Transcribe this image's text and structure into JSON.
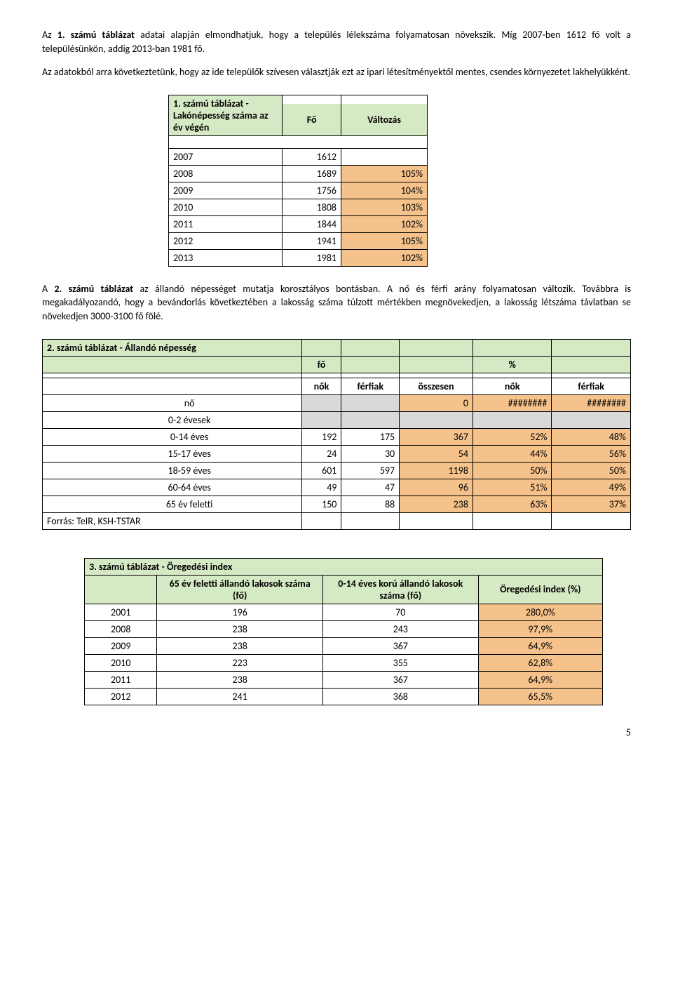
{
  "para1": {
    "prefix": "Az ",
    "bold": "1. számú táblázat",
    "rest": " adatai alapján elmondhatjuk, hogy a település lélekszáma folyamatosan növekszik. Míg 2007-ben 1612 fő volt a településünkön, addig 2013-ban 1981 fő."
  },
  "para2": "Az adatokból arra következtetünk, hogy az ide települők szívesen választják ezt az ipari létesítményektől mentes, csendes környezetet lakhelyükként.",
  "table1": {
    "title": "1. számú táblázat - Lakónépesség száma az év végén",
    "col_fo": "Fő",
    "col_valtozas": "Változás",
    "rows": [
      {
        "year": "2007",
        "fo": "1612",
        "chg": ""
      },
      {
        "year": "2008",
        "fo": "1689",
        "chg": "105%"
      },
      {
        "year": "2009",
        "fo": "1756",
        "chg": "104%"
      },
      {
        "year": "2010",
        "fo": "1808",
        "chg": "103%"
      },
      {
        "year": "2011",
        "fo": "1844",
        "chg": "102%"
      },
      {
        "year": "2012",
        "fo": "1941",
        "chg": "105%"
      },
      {
        "year": "2013",
        "fo": "1981",
        "chg": "102%"
      }
    ]
  },
  "para3": {
    "prefix": "A ",
    "bold": "2. számú táblázat",
    "rest": " az állandó népességet mutatja korosztályos bontásban. A nő és férfi arány folyamatosan változik. Továbbra is megakadályozandó, hogy a bevándorlás következtében a lakosság száma túlzott mértékben megnövekedjen, a lakosság létszáma távlatban se növekedjen 3000-3100 fő fölé."
  },
  "table2": {
    "title": "2. számú táblázat - Állandó népesség",
    "col_fo": "fő",
    "col_pct": "%",
    "sub_nok": "nők",
    "sub_ferfiak": "férfiak",
    "sub_osszesen": "összesen",
    "rows": [
      {
        "lbl": "nő",
        "grey": true,
        "n": "",
        "f": "",
        "o": "0",
        "pn": "########",
        "pf": "########"
      },
      {
        "lbl": "0-2 évesek",
        "grey": true,
        "n": "",
        "f": "",
        "o": "",
        "pn": "",
        "pf": ""
      },
      {
        "lbl": "0-14 éves",
        "n": "192",
        "f": "175",
        "o": "367",
        "pn": "52%",
        "pf": "48%"
      },
      {
        "lbl": "15-17 éves",
        "n": "24",
        "f": "30",
        "o": "54",
        "pn": "44%",
        "pf": "56%"
      },
      {
        "lbl": "18-59 éves",
        "n": "601",
        "f": "597",
        "o": "1198",
        "pn": "50%",
        "pf": "50%"
      },
      {
        "lbl": "60-64 éves",
        "n": "49",
        "f": "47",
        "o": "96",
        "pn": "51%",
        "pf": "49%"
      },
      {
        "lbl": "65 év feletti",
        "n": "150",
        "f": "88",
        "o": "238",
        "pn": "63%",
        "pf": "37%"
      }
    ],
    "source": "Forrás: TeIR, KSH-TSTAR"
  },
  "table3": {
    "title": "3. számú táblázat - Öregedési index",
    "h1": "65 év feletti állandó lakosok száma (fő)",
    "h2": "0-14 éves korú állandó lakosok száma (fő)",
    "h3": "Öregedési index (%)",
    "rows": [
      {
        "y": "2001",
        "a": "196",
        "b": "70",
        "c": "280,0%"
      },
      {
        "y": "2008",
        "a": "238",
        "b": "243",
        "c": "97,9%"
      },
      {
        "y": "2009",
        "a": "238",
        "b": "367",
        "c": "64,9%"
      },
      {
        "y": "2010",
        "a": "223",
        "b": "355",
        "c": "62,8%"
      },
      {
        "y": "2011",
        "a": "238",
        "b": "367",
        "c": "64,9%"
      },
      {
        "y": "2012",
        "a": "241",
        "b": "368",
        "c": "65,5%"
      }
    ]
  },
  "page_number": "5"
}
